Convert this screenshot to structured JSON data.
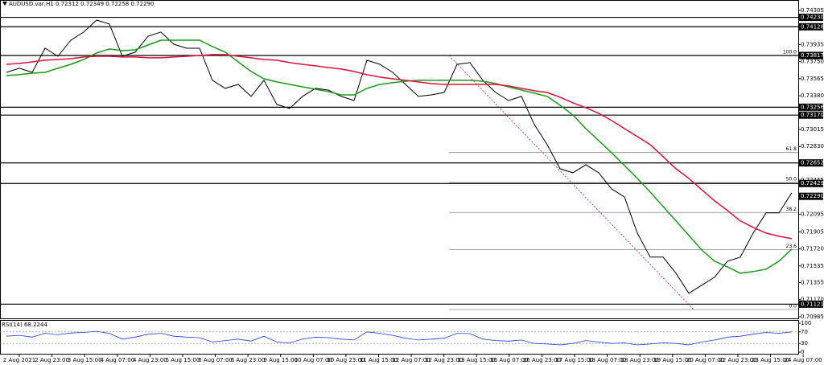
{
  "chart_data": {
    "type": "line",
    "title": "AUDUSD.var,H1  0.72312 0.72349 0.72258 0.72290",
    "x_labels": [
      "2 Aug 2021",
      "2 Aug 23:00",
      "3 Aug 15:00",
      "4 Aug 07:00",
      "4 Aug 23:00",
      "5 Aug 15:00",
      "6 Aug 07:00",
      "6 Aug 23:00",
      "9 Aug 15:00",
      "10 Aug 07:00",
      "10 Aug 23:00",
      "11 Aug 15:00",
      "12 Aug 07:00",
      "12 Aug 23:00",
      "13 Aug 15:00",
      "16 Aug 07:00",
      "16 Aug 23:00",
      "17 Aug 15:00",
      "18 Aug 07:00",
      "18 Aug 23:00",
      "19 Aug 15:00",
      "20 Aug 07:00",
      "22 Aug 23:00",
      "23 Aug 15:00",
      "24 Aug 07:00"
    ],
    "ylim": [
      0.70967,
      0.74418
    ],
    "yticks": [
      {
        "value": 0.74305,
        "label": "0.74305"
      },
      {
        "value": 0.73935,
        "label": "0.73935"
      },
      {
        "value": 0.7375,
        "label": "0.73750"
      },
      {
        "value": 0.73565,
        "label": "0.73565"
      },
      {
        "value": 0.7338,
        "label": "0.73380"
      },
      {
        "value": 0.73015,
        "label": "0.73015"
      },
      {
        "value": 0.7283,
        "label": "0.72830"
      },
      {
        "value": 0.72465,
        "label": "0.72465"
      },
      {
        "value": 0.72095,
        "label": "0.72095"
      },
      {
        "value": 0.71905,
        "label": "0.71905"
      },
      {
        "value": 0.7172,
        "label": "0.71720"
      },
      {
        "value": 0.71535,
        "label": "0.71535"
      },
      {
        "value": 0.71355,
        "label": "0.71355"
      },
      {
        "value": 0.7117,
        "label": "0.71170"
      },
      {
        "value": 0.70985,
        "label": "0.70985"
      }
    ],
    "levels": [
      {
        "value": 0.7423,
        "label": "0.74230"
      },
      {
        "value": 0.74128,
        "label": "0.74128"
      },
      {
        "value": 0.73817,
        "label": "0.73817"
      },
      {
        "value": 0.73256,
        "label": "0.73256"
      },
      {
        "value": 0.7317,
        "label": "0.73170"
      },
      {
        "value": 0.72652,
        "label": "0.72652"
      },
      {
        "value": 0.72429,
        "label": "0.72429"
      },
      {
        "value": 0.71121,
        "label": "0.71121"
      }
    ],
    "current_price": {
      "value": 0.7229,
      "label": "0.72290"
    },
    "fibonacci": [
      {
        "label": "100.0",
        "value": 0.73817
      },
      {
        "label": "61.8",
        "value": 0.72765
      },
      {
        "label": "50.0",
        "value": 0.7244
      },
      {
        "label": "38.2",
        "value": 0.72115
      },
      {
        "label": "23.6",
        "value": 0.71713
      },
      {
        "label": "0.0",
        "value": 0.71063
      }
    ],
    "series": [
      {
        "color": "#000000",
        "values": [
          0.73634,
          0.73678,
          0.73634,
          0.73895,
          0.73808,
          0.73982,
          0.7407,
          0.742,
          0.74157,
          0.73808,
          0.73852,
          0.74026,
          0.7407,
          0.73939,
          0.73895,
          0.73895,
          0.73547,
          0.7346,
          0.73503,
          0.73373,
          0.73547,
          0.73286,
          0.73242,
          0.73373,
          0.7346,
          0.73442,
          0.73373,
          0.73329,
          0.73765,
          0.73721,
          0.73634,
          0.73503,
          0.73373,
          0.7339,
          0.73416,
          0.73721,
          0.73739,
          0.73547,
          0.73416,
          0.73329,
          0.73373,
          0.73068,
          0.7285,
          0.72589,
          0.72545,
          0.72632,
          0.72545,
          0.72371,
          0.72284,
          0.71892,
          0.71631,
          0.71631,
          0.71457,
          0.71239,
          0.71326,
          0.71413,
          0.71587,
          0.71631,
          0.71892,
          0.7211,
          0.7211,
          0.72328
        ]
      },
      {
        "color": "#1a9a1a",
        "values": [
          0.73599,
          0.73608,
          0.73625,
          0.73634,
          0.73678,
          0.73721,
          0.73773,
          0.73843,
          0.73887,
          0.73869,
          0.73878,
          0.7393,
          0.73982,
          0.73982,
          0.73982,
          0.73982,
          0.73913,
          0.73852,
          0.73747,
          0.73643,
          0.73564,
          0.7353,
          0.73503,
          0.73477,
          0.73451,
          0.73425,
          0.7339,
          0.7339,
          0.7346,
          0.73503,
          0.73521,
          0.73538,
          0.73547,
          0.73547,
          0.73547,
          0.73547,
          0.73547,
          0.73538,
          0.73512,
          0.73477,
          0.73442,
          0.73408,
          0.73373,
          0.73277,
          0.73172,
          0.73024,
          0.72894,
          0.72763,
          0.72624,
          0.72484,
          0.72336,
          0.7218,
          0.72023,
          0.71866,
          0.71709,
          0.71587,
          0.71526,
          0.71457,
          0.71474,
          0.715,
          0.71587,
          0.71718
        ]
      },
      {
        "color": "#e0103c",
        "values": [
          0.73721,
          0.7373,
          0.73747,
          0.73765,
          0.73773,
          0.73782,
          0.738,
          0.73808,
          0.73808,
          0.738,
          0.738,
          0.73791,
          0.73791,
          0.738,
          0.73808,
          0.73817,
          0.73826,
          0.73826,
          0.73808,
          0.73791,
          0.73773,
          0.73765,
          0.73739,
          0.73721,
          0.73704,
          0.73686,
          0.73669,
          0.73643,
          0.73608,
          0.73582,
          0.73564,
          0.73547,
          0.7353,
          0.73512,
          0.73503,
          0.73503,
          0.73503,
          0.73503,
          0.73503,
          0.73486,
          0.7346,
          0.73434,
          0.73416,
          0.73364,
          0.73303,
          0.73251,
          0.7319,
          0.73112,
          0.73024,
          0.72937,
          0.7285,
          0.7272,
          0.72589,
          0.72484,
          0.72362,
          0.72241,
          0.72136,
          0.72023,
          0.71953,
          0.71892,
          0.71857,
          0.71831
        ]
      }
    ],
    "rsi": {
      "title": "RSI(14) 68.2244",
      "ylim": [
        0,
        100
      ],
      "yticks": [
        0,
        30,
        70,
        100
      ],
      "levels": [
        30,
        70
      ],
      "color": "#1e3cff",
      "values": [
        55,
        58,
        52,
        65,
        60,
        66,
        68,
        72,
        65,
        45,
        52,
        62,
        65,
        55,
        52,
        50,
        35,
        40,
        45,
        38,
        55,
        35,
        32,
        45,
        52,
        50,
        45,
        42,
        70,
        65,
        58,
        48,
        42,
        45,
        48,
        65,
        64,
        45,
        40,
        38,
        42,
        30,
        28,
        25,
        30,
        40,
        35,
        30,
        32,
        25,
        28,
        32,
        30,
        25,
        35,
        42,
        52,
        55,
        62,
        68,
        65,
        70
      ]
    }
  }
}
